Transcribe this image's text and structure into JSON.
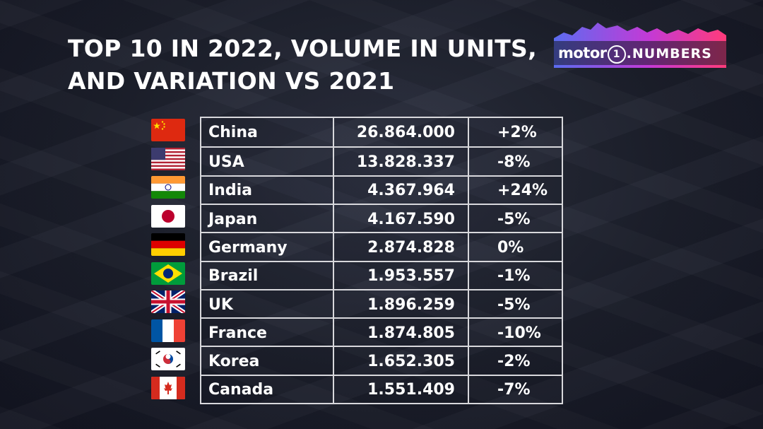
{
  "title": {
    "line1": "TOP 10 IN 2022, VOLUME IN UNITS,",
    "line2": "AND VARIATION VS 2021"
  },
  "logo": {
    "brand": "motor",
    "one": "1",
    "sub": ".NUMBERS",
    "gradient_colors": [
      "#5b6cf0",
      "#c33ad6",
      "#ff3b7a"
    ]
  },
  "rows": [
    {
      "country": "China",
      "volume": "26.864.000",
      "variation": "+2%",
      "flag": "china-flag-icon"
    },
    {
      "country": "USA",
      "volume": "13.828.337",
      "variation": "-8%",
      "flag": "usa-flag-icon"
    },
    {
      "country": "India",
      "volume": "4.367.964",
      "variation": "+24%",
      "flag": "india-flag-icon"
    },
    {
      "country": "Japan",
      "volume": "4.167.590",
      "variation": "-5%",
      "flag": "japan-flag-icon"
    },
    {
      "country": "Germany",
      "volume": "2.874.828",
      "variation": "0%",
      "flag": "germany-flag-icon"
    },
    {
      "country": "Brazil",
      "volume": "1.953.557",
      "variation": "-1%",
      "flag": "brazil-flag-icon"
    },
    {
      "country": "UK",
      "volume": "1.896.259",
      "variation": "-5%",
      "flag": "uk-flag-icon"
    },
    {
      "country": "France",
      "volume": "1.874.805",
      "variation": "-10%",
      "flag": "france-flag-icon"
    },
    {
      "country": "Korea",
      "volume": "1.652.305",
      "variation": "-2%",
      "flag": "korea-flag-icon"
    },
    {
      "country": "Canada",
      "volume": "1.551.409",
      "variation": "-7%",
      "flag": "canada-flag-icon"
    }
  ]
}
